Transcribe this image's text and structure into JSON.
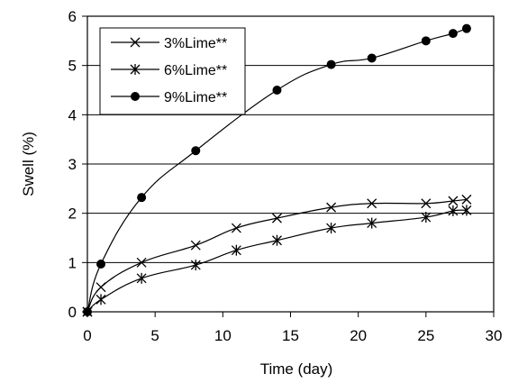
{
  "chart_data": {
    "type": "line",
    "xlabel": "Time (day)",
    "ylabel": "Swell (%)",
    "xlim": [
      0,
      30
    ],
    "ylim": [
      0,
      6
    ],
    "xticks": [
      0,
      5,
      10,
      15,
      20,
      25,
      30
    ],
    "yticks": [
      0,
      1,
      2,
      3,
      4,
      5,
      6
    ],
    "grid": "horizontal",
    "legend_position": "top-left",
    "series": [
      {
        "name": "3%Lime**",
        "marker": "x",
        "color": "#000000",
        "x": [
          0,
          1,
          4,
          8,
          11,
          14,
          18,
          21,
          25,
          27,
          28
        ],
        "y": [
          0,
          0.5,
          1.0,
          1.35,
          1.7,
          1.9,
          2.12,
          2.2,
          2.2,
          2.25,
          2.28
        ]
      },
      {
        "name": "6%Lime**",
        "marker": "asterisk",
        "color": "#000000",
        "x": [
          0,
          1,
          4,
          8,
          11,
          14,
          18,
          21,
          25,
          27,
          28
        ],
        "y": [
          0,
          0.25,
          0.68,
          0.95,
          1.25,
          1.45,
          1.7,
          1.8,
          1.92,
          2.05,
          2.06
        ]
      },
      {
        "name": "9%Lime**",
        "marker": "circle",
        "color": "#000000",
        "x": [
          0,
          1,
          4,
          8,
          14,
          18,
          21,
          25,
          27,
          28
        ],
        "y": [
          0,
          0.97,
          2.32,
          3.27,
          4.5,
          5.02,
          5.15,
          5.5,
          5.65,
          5.75
        ]
      }
    ]
  }
}
